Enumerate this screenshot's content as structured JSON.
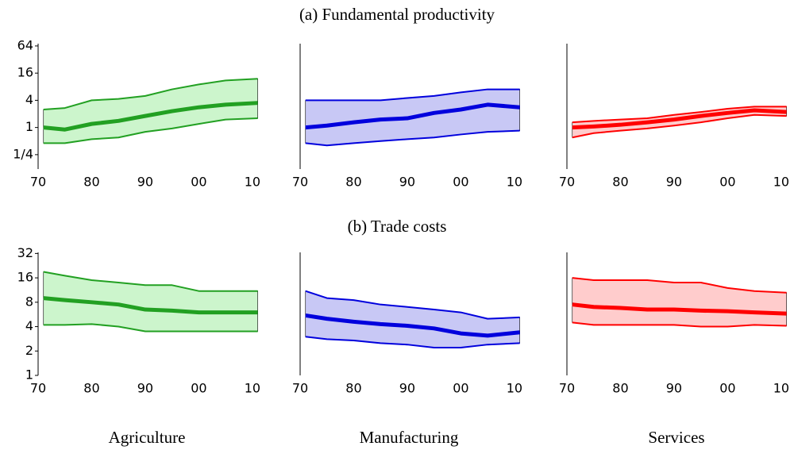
{
  "panel_titles": [
    "(a) Fundamental productivity",
    "(b) Trade costs"
  ],
  "sector_labels": [
    "Agriculture",
    "Manufacturing",
    "Services"
  ],
  "chart_data": [
    {
      "type": "line",
      "log_y": true,
      "band_color": "#ccf5cc",
      "x": [
        1971,
        1975,
        1980,
        1985,
        1990,
        1995,
        2000,
        2005,
        2011
      ],
      "xlim": [
        1970,
        2011.5
      ],
      "xticks": [
        {
          "value": 1970,
          "label": "70"
        },
        {
          "value": 1980,
          "label": "80"
        },
        {
          "value": 1990,
          "label": "90"
        },
        {
          "value": 2000,
          "label": "00"
        },
        {
          "value": 2010,
          "label": "10"
        }
      ],
      "ylim": [
        0.12,
        72
      ],
      "yticks": [
        {
          "value": 0.25,
          "label": "1/4"
        },
        1,
        4,
        16,
        64
      ],
      "series": [
        {
          "color": "#22a022",
          "values": [
            0.45,
            0.45,
            0.55,
            0.6,
            0.8,
            0.95,
            1.2,
            1.5,
            1.6
          ]
        },
        {
          "color": "#22a022",
          "values": [
            1,
            0.9,
            1.2,
            1.4,
            1.8,
            2.3,
            2.8,
            3.2,
            3.5
          ]
        },
        {
          "color": "#22a022",
          "values": [
            2.5,
            2.7,
            4,
            4.3,
            5,
            7,
            9,
            11,
            12
          ]
        }
      ]
    },
    {
      "type": "line",
      "log_y": true,
      "band_color": "#c8c8f5",
      "x": [
        1971,
        1975,
        1980,
        1985,
        1990,
        1995,
        2000,
        2005,
        2011
      ],
      "xlim": [
        1970,
        2011.5
      ],
      "xticks": [
        {
          "value": 1970,
          "label": "70"
        },
        {
          "value": 1980,
          "label": "80"
        },
        {
          "value": 1990,
          "label": "90"
        },
        {
          "value": 2000,
          "label": "00"
        },
        {
          "value": 2010,
          "label": "10"
        }
      ],
      "ylim": [
        0.12,
        72
      ],
      "series": [
        {
          "color": "#0000dd",
          "values": [
            0.45,
            0.4,
            0.45,
            0.5,
            0.55,
            0.6,
            0.7,
            0.8,
            0.85
          ]
        },
        {
          "color": "#0000dd",
          "values": [
            1,
            1.1,
            1.3,
            1.5,
            1.6,
            2.1,
            2.5,
            3.2,
            2.8
          ]
        },
        {
          "color": "#0000dd",
          "values": [
            4,
            4,
            4,
            4,
            4.5,
            5,
            6,
            7,
            7
          ]
        }
      ]
    },
    {
      "type": "line",
      "log_y": true,
      "band_color": "#ffcccc",
      "x": [
        1971,
        1975,
        1980,
        1985,
        1990,
        1995,
        2000,
        2005,
        2011
      ],
      "xlim": [
        1970,
        2011.5
      ],
      "xticks": [
        {
          "value": 1970,
          "label": "70"
        },
        {
          "value": 1980,
          "label": "80"
        },
        {
          "value": 1990,
          "label": "90"
        },
        {
          "value": 2000,
          "label": "00"
        },
        {
          "value": 2010,
          "label": "10"
        }
      ],
      "ylim": [
        0.12,
        72
      ],
      "series": [
        {
          "color": "#ff0000",
          "values": [
            0.6,
            0.75,
            0.85,
            0.95,
            1.1,
            1.3,
            1.6,
            1.9,
            1.8
          ]
        },
        {
          "color": "#ff0000",
          "values": [
            1,
            1.05,
            1.15,
            1.3,
            1.5,
            1.8,
            2.1,
            2.4,
            2.2
          ]
        },
        {
          "color": "#ff0000",
          "values": [
            1.3,
            1.4,
            1.5,
            1.6,
            1.9,
            2.2,
            2.6,
            2.9,
            2.9
          ]
        }
      ]
    },
    {
      "type": "line",
      "log_y": true,
      "band_color": "#ccf5cc",
      "x": [
        1971,
        1975,
        1980,
        1985,
        1990,
        1995,
        2000,
        2005,
        2011
      ],
      "xlim": [
        1970,
        2011.5
      ],
      "xticks": [
        {
          "value": 1970,
          "label": "70"
        },
        {
          "value": 1980,
          "label": "80"
        },
        {
          "value": 1990,
          "label": "90"
        },
        {
          "value": 2000,
          "label": "00"
        },
        {
          "value": 2010,
          "label": "10"
        }
      ],
      "ylim": [
        1,
        33
      ],
      "yticks": [
        1,
        2,
        4,
        8,
        16,
        32
      ],
      "series": [
        {
          "color": "#22a022",
          "values": [
            4.2,
            4.2,
            4.3,
            4,
            3.5,
            3.5,
            3.5,
            3.5,
            3.5
          ]
        },
        {
          "color": "#22a022",
          "values": [
            9,
            8.5,
            8,
            7.5,
            6.5,
            6.3,
            6,
            6,
            6
          ]
        },
        {
          "color": "#22a022",
          "values": [
            19,
            17,
            15,
            14,
            13,
            13,
            11,
            11,
            11
          ]
        }
      ]
    },
    {
      "type": "line",
      "log_y": true,
      "band_color": "#c8c8f5",
      "x": [
        1971,
        1975,
        1980,
        1985,
        1990,
        1995,
        2000,
        2005,
        2011
      ],
      "xlim": [
        1970,
        2011.5
      ],
      "xticks": [
        {
          "value": 1970,
          "label": "70"
        },
        {
          "value": 1980,
          "label": "80"
        },
        {
          "value": 1990,
          "label": "90"
        },
        {
          "value": 2000,
          "label": "00"
        },
        {
          "value": 2010,
          "label": "10"
        }
      ],
      "ylim": [
        1,
        33
      ],
      "series": [
        {
          "color": "#0000dd",
          "values": [
            3,
            2.8,
            2.7,
            2.5,
            2.4,
            2.2,
            2.2,
            2.4,
            2.5
          ]
        },
        {
          "color": "#0000dd",
          "values": [
            5.5,
            5,
            4.6,
            4.3,
            4.1,
            3.8,
            3.3,
            3.1,
            3.4
          ]
        },
        {
          "color": "#0000dd",
          "values": [
            11,
            9,
            8.5,
            7.5,
            7,
            6.5,
            6,
            5,
            5.2
          ]
        }
      ]
    },
    {
      "type": "line",
      "log_y": true,
      "band_color": "#ffcccc",
      "x": [
        1971,
        1975,
        1980,
        1985,
        1990,
        1995,
        2000,
        2005,
        2011
      ],
      "xlim": [
        1970,
        2011.5
      ],
      "xticks": [
        {
          "value": 1970,
          "label": "70"
        },
        {
          "value": 1980,
          "label": "80"
        },
        {
          "value": 1990,
          "label": "90"
        },
        {
          "value": 2000,
          "label": "00"
        },
        {
          "value": 2010,
          "label": "10"
        }
      ],
      "ylim": [
        1,
        33
      ],
      "series": [
        {
          "color": "#ff0000",
          "values": [
            4.5,
            4.2,
            4.2,
            4.2,
            4.2,
            4,
            4,
            4.2,
            4.1
          ]
        },
        {
          "color": "#ff0000",
          "values": [
            7.5,
            7,
            6.8,
            6.5,
            6.5,
            6.3,
            6.2,
            6,
            5.8
          ]
        },
        {
          "color": "#ff0000",
          "values": [
            16,
            15,
            15,
            15,
            14,
            14,
            12,
            11,
            10.5
          ]
        }
      ]
    }
  ]
}
